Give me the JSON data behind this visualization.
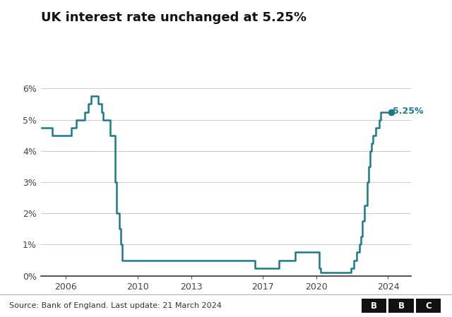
{
  "title": "UK interest rate unchanged at 5.25%",
  "source_text": "Source: Bank of England. Last update: 21 March 2024",
  "line_color": "#1a7a8a",
  "annotation_color": "#1a7a8a",
  "background_color": "#ffffff",
  "ylim": [
    0,
    6.5
  ],
  "yticks": [
    0,
    1,
    2,
    3,
    4,
    5,
    6
  ],
  "ytick_labels": [
    "0%",
    "1%",
    "2%",
    "3%",
    "4%",
    "5%",
    "6%"
  ],
  "annotation_value": "5.25%",
  "xlim_left": 2004.6,
  "xlim_right": 2025.3,
  "xticks": [
    2006,
    2010,
    2013,
    2017,
    2020,
    2024
  ],
  "rates": [
    [
      2004.67,
      4.75
    ],
    [
      2005.25,
      4.5
    ],
    [
      2006.08,
      4.5
    ],
    [
      2006.33,
      4.75
    ],
    [
      2006.58,
      5.0
    ],
    [
      2006.83,
      5.0
    ],
    [
      2007.08,
      5.25
    ],
    [
      2007.25,
      5.5
    ],
    [
      2007.42,
      5.75
    ],
    [
      2007.75,
      5.75
    ],
    [
      2007.83,
      5.5
    ],
    [
      2008.0,
      5.25
    ],
    [
      2008.08,
      5.0
    ],
    [
      2008.25,
      5.0
    ],
    [
      2008.5,
      4.5
    ],
    [
      2008.75,
      3.0
    ],
    [
      2008.83,
      2.0
    ],
    [
      2009.0,
      1.5
    ],
    [
      2009.08,
      1.0
    ],
    [
      2009.17,
      0.5
    ],
    [
      2016.17,
      0.5
    ],
    [
      2016.58,
      0.25
    ],
    [
      2017.75,
      0.25
    ],
    [
      2017.92,
      0.5
    ],
    [
      2018.75,
      0.5
    ],
    [
      2018.83,
      0.75
    ],
    [
      2020.08,
      0.75
    ],
    [
      2020.17,
      0.25
    ],
    [
      2020.25,
      0.1
    ],
    [
      2021.75,
      0.1
    ],
    [
      2021.92,
      0.25
    ],
    [
      2022.08,
      0.5
    ],
    [
      2022.25,
      0.75
    ],
    [
      2022.42,
      1.0
    ],
    [
      2022.5,
      1.25
    ],
    [
      2022.58,
      1.75
    ],
    [
      2022.67,
      2.25
    ],
    [
      2022.83,
      3.0
    ],
    [
      2022.92,
      3.5
    ],
    [
      2023.0,
      4.0
    ],
    [
      2023.08,
      4.25
    ],
    [
      2023.17,
      4.5
    ],
    [
      2023.33,
      4.75
    ],
    [
      2023.5,
      5.0
    ],
    [
      2023.58,
      5.25
    ],
    [
      2024.17,
      5.25
    ]
  ]
}
